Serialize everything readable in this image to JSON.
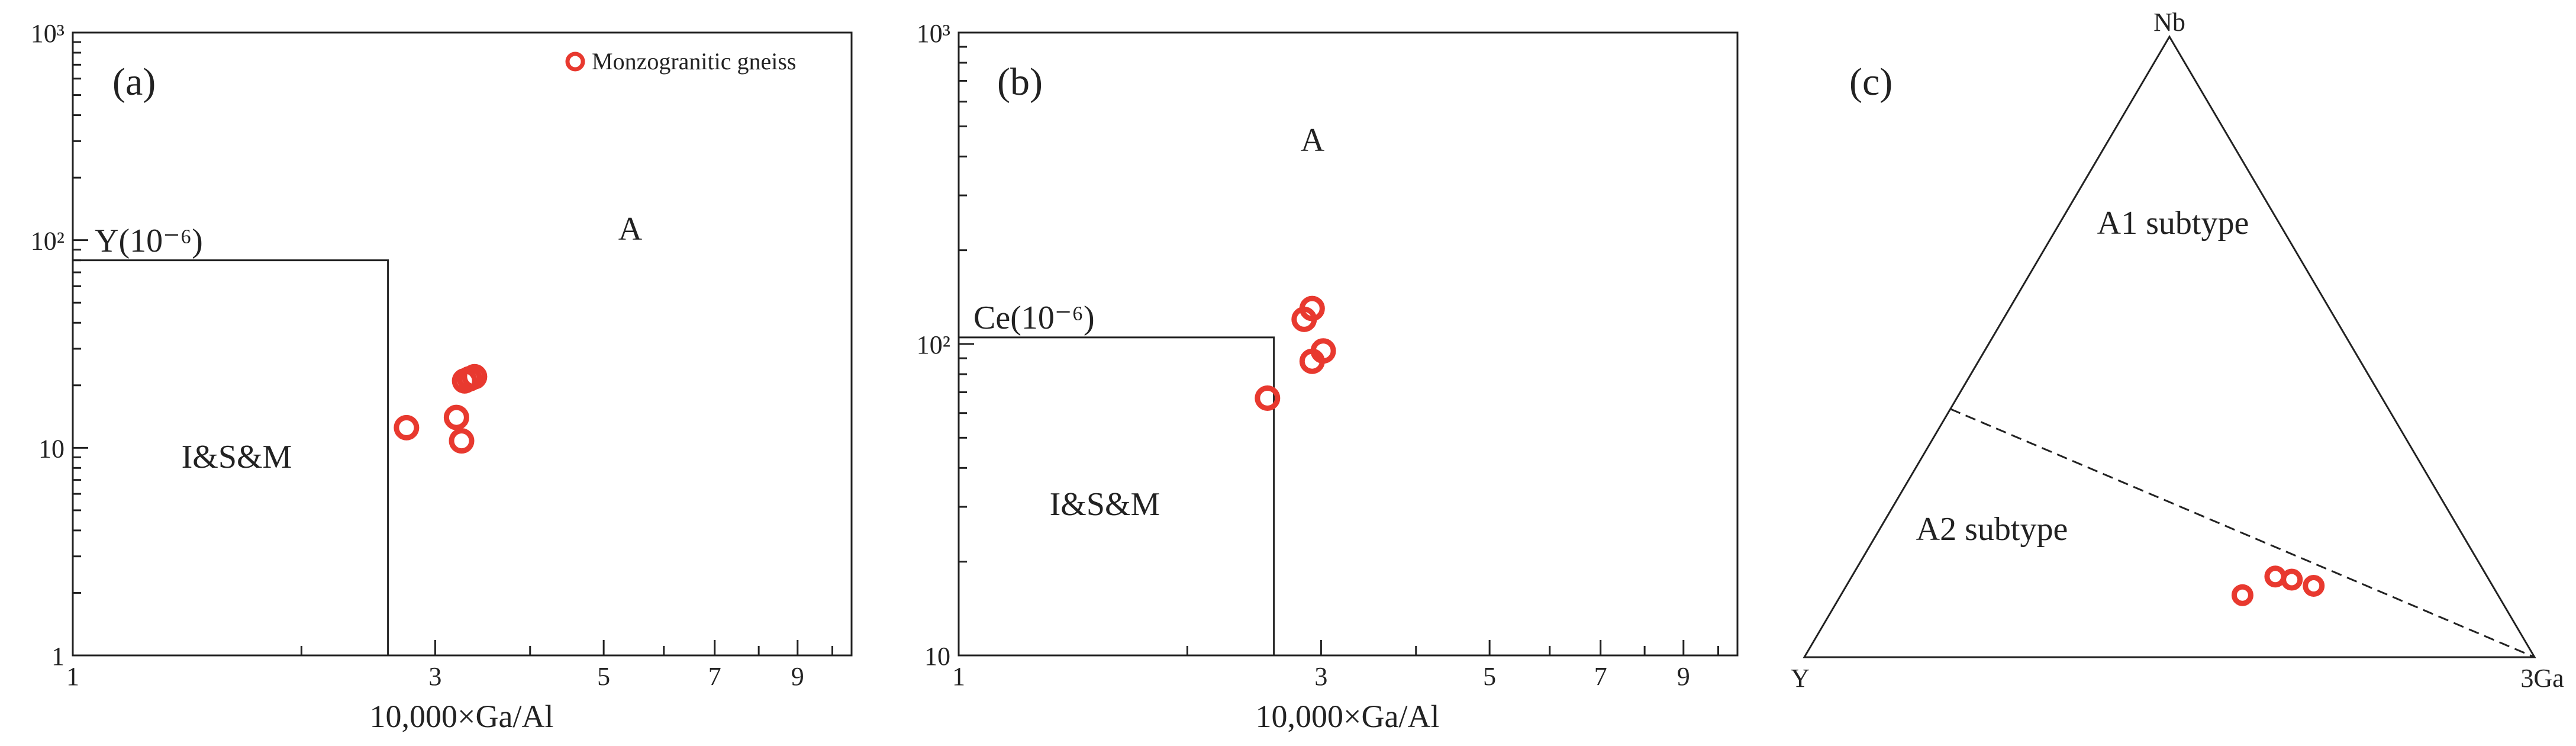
{
  "chart_data": [
    {
      "type": "scatter",
      "panel_label": "(a)",
      "xlabel": "10,000×Ga/Al",
      "ylabel": "Y(10⁻⁶)",
      "xscale": "log",
      "yscale": "log",
      "xlim": [
        1,
        10
      ],
      "ylim": [
        1,
        1000
      ],
      "x_ticks": [
        "1",
        "3",
        "5",
        "7",
        "9"
      ],
      "y_ticks": [
        "1",
        "10",
        "10²",
        "10³"
      ],
      "legend": {
        "position": "top-right",
        "entries": [
          "Monzogranitic gneiss"
        ]
      },
      "fields": [
        {
          "label": "I&S&M",
          "x_max": 2.6,
          "y_max": 80
        },
        {
          "label": "A"
        }
      ],
      "series": [
        {
          "name": "Monzogranitic gneiss",
          "points": [
            [
              2.75,
              12.5
            ],
            [
              3.2,
              14
            ],
            [
              3.25,
              10.8
            ],
            [
              3.28,
              21
            ],
            [
              3.38,
              22
            ],
            [
              3.33,
              21.5
            ]
          ]
        }
      ]
    },
    {
      "type": "scatter",
      "panel_label": "(b)",
      "xlabel": "10,000×Ga/Al",
      "ylabel": "Ce(10⁻⁶)",
      "xscale": "log",
      "yscale": "log",
      "xlim": [
        1,
        10
      ],
      "ylim": [
        10,
        1000
      ],
      "x_ticks": [
        "1",
        "3",
        "5",
        "7",
        "9"
      ],
      "y_ticks": [
        "10",
        "10²",
        "10³"
      ],
      "fields": [
        {
          "label": "I&S&M",
          "x_max": 2.6,
          "y_max": 105
        },
        {
          "label": "A"
        }
      ],
      "series": [
        {
          "name": "Monzogranitic gneiss",
          "points": [
            [
              2.55,
              67
            ],
            [
              2.85,
              120
            ],
            [
              2.92,
              130
            ],
            [
              2.92,
              88
            ],
            [
              3.02,
              95
            ]
          ]
        }
      ]
    },
    {
      "type": "ternary",
      "panel_label": "(c)",
      "apices": {
        "top": "Nb",
        "left": "Y",
        "right": "3Ga"
      },
      "fields": [
        "A1 subtype",
        "A2 subtype"
      ],
      "divider": {
        "from": {
          "Nb": 0.4,
          "Y": 0.6,
          "Ga3": 0.0
        },
        "to": {
          "Nb": 0.0,
          "Y": 0.0,
          "Ga3": 1.0
        }
      },
      "series": [
        {
          "name": "Monzogranitic gneiss",
          "points": [
            {
              "Nb": 0.1,
              "Y": 0.35,
              "Ga3": 0.55
            },
            {
              "Nb": 0.13,
              "Y": 0.29,
              "Ga3": 0.58
            },
            {
              "Nb": 0.125,
              "Y": 0.27,
              "Ga3": 0.605
            },
            {
              "Nb": 0.115,
              "Y": 0.245,
              "Ga3": 0.64
            }
          ]
        }
      ]
    }
  ]
}
